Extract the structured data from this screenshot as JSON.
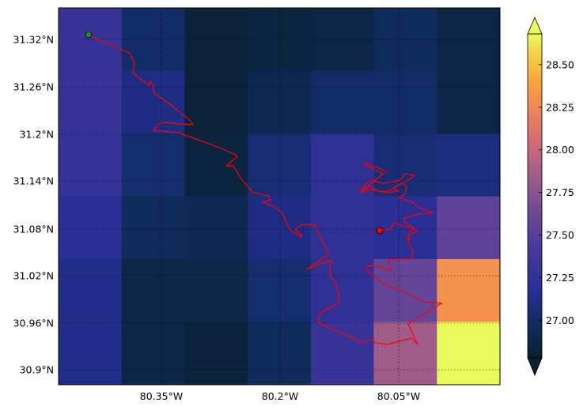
{
  "map": {
    "lat_ticks": [
      "31.32°N",
      "31.26°N",
      "31.2°N",
      "31.14°N",
      "31.08°N",
      "31.02°N",
      "30.96°N",
      "30.9°N"
    ],
    "lon_ticks": [
      "80.35°W",
      "80.2°W",
      "80.05°W"
    ],
    "grid_values": [
      [
        27.3,
        27.0,
        26.82,
        26.85,
        26.87,
        26.95,
        26.87
      ],
      [
        27.3,
        27.1,
        26.82,
        26.92,
        27.0,
        27.0,
        26.87
      ],
      [
        27.28,
        27.02,
        26.85,
        27.05,
        27.23,
        27.05,
        27.08
      ],
      [
        27.18,
        26.95,
        26.93,
        27.1,
        27.23,
        27.18,
        27.55
      ],
      [
        27.12,
        26.88,
        26.88,
        27.02,
        27.23,
        27.58,
        28.3
      ],
      [
        27.12,
        26.88,
        26.83,
        26.96,
        27.3,
        27.85,
        28.68
      ]
    ],
    "track_color": "#ff0000",
    "start_marker_color": "#228b22",
    "end_marker_color": "#ff0000"
  },
  "colorbar": {
    "ticks": [
      "27.00",
      "27.25",
      "27.50",
      "27.75",
      "28.00",
      "28.25",
      "28.50"
    ],
    "tick_values": [
      27.0,
      27.25,
      27.5,
      27.75,
      28.0,
      28.25,
      28.5
    ],
    "vmin": 26.78,
    "vmax": 28.68
  }
}
